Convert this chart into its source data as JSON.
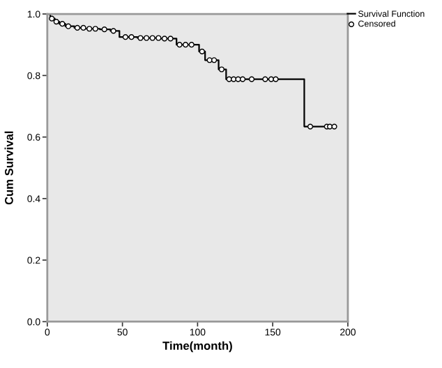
{
  "chart_data": {
    "type": "step",
    "xlabel": "Time(month)",
    "ylabel": "Cum Survival",
    "xlim": [
      0,
      200
    ],
    "ylim": [
      0.0,
      1.0
    ],
    "xticks": [
      0,
      50,
      100,
      150,
      200
    ],
    "yticks": [
      {
        "value": 0,
        "label": "0.0"
      },
      0.2,
      0.4,
      0.6,
      0.8,
      {
        "value": 1,
        "label": "1.0"
      }
    ],
    "grid": false,
    "legend": "top right",
    "series": [
      {
        "name": "Survival Function",
        "color": "#000000",
        "marker": "none",
        "x": [
          0,
          2,
          5,
          8,
          12,
          18,
          25,
          35,
          42,
          48,
          60,
          75,
          86,
          101,
          105,
          114,
          119,
          171,
          192
        ],
        "values": [
          1.0,
          0.985,
          0.975,
          0.968,
          0.96,
          0.955,
          0.952,
          0.95,
          0.945,
          0.925,
          0.922,
          0.92,
          0.9,
          0.878,
          0.85,
          0.82,
          0.788,
          0.634,
          0.634
        ]
      },
      {
        "name": "Censored",
        "type": "scatter",
        "color": "#000000",
        "marker": "circle",
        "x": [
          3,
          6,
          10,
          14,
          20,
          24,
          28,
          32,
          38,
          44,
          52,
          56,
          62,
          66,
          70,
          74,
          78,
          82,
          88,
          92,
          96,
          103,
          108,
          111,
          116,
          121,
          124,
          127,
          130,
          136,
          145,
          149,
          152,
          175,
          186,
          188,
          191
        ],
        "values": [
          0.985,
          0.975,
          0.968,
          0.96,
          0.955,
          0.955,
          0.952,
          0.952,
          0.95,
          0.945,
          0.925,
          0.925,
          0.922,
          0.922,
          0.922,
          0.922,
          0.92,
          0.92,
          0.9,
          0.9,
          0.9,
          0.878,
          0.85,
          0.85,
          0.82,
          0.788,
          0.788,
          0.788,
          0.788,
          0.788,
          0.788,
          0.788,
          0.788,
          0.634,
          0.634,
          0.634,
          0.634
        ]
      }
    ]
  }
}
